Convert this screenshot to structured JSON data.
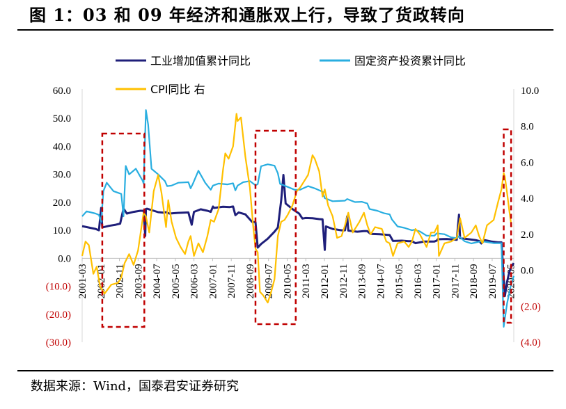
{
  "title": "图 1：03 和 09 年经济和通胀双上行，导致了货政转向",
  "source": "数据来源：Wind，国泰君安证券研究",
  "chart_data": {
    "type": "line",
    "title": "",
    "xlabel": "",
    "ylabel": "",
    "ylim_left": [
      -30,
      60
    ],
    "ylim_right": [
      -4,
      10
    ],
    "y_ticks_left": [
      "60.0",
      "50.0",
      "40.0",
      "30.0",
      "20.0",
      "10.0",
      "0.0",
      "(10.0)",
      "(20.0)",
      "(30.0)"
    ],
    "y_ticks_right": [
      "10.0",
      "8.0",
      "6.0",
      "4.0",
      "2.0",
      "0.0",
      "(2.0)",
      "(4.0)"
    ],
    "x_ticks": [
      "2001-03",
      "2002-01",
      "2002-11",
      "2003-09",
      "2004-07",
      "2005-05",
      "2006-03",
      "2007-01",
      "2007-11",
      "2008-09",
      "2009-07",
      "2010-05",
      "2011-03",
      "2012-01",
      "2012-11",
      "2013-09",
      "2014-07",
      "2015-05",
      "2016-03",
      "2017-01",
      "2017-11",
      "2018-09",
      "2019-07",
      "2020-05"
    ],
    "negative_color": "#c00000",
    "legend": [
      {
        "name": "工业增加值累计同比",
        "color": "#1f1f7a"
      },
      {
        "name": "固定资产投资累计同比",
        "color": "#29aee0"
      },
      {
        "name": "CPI同比 右",
        "color": "#ffc000"
      }
    ],
    "series": [
      {
        "name": "工业增加值累计同比",
        "axis": "left",
        "color": "#1f1f7a",
        "points": [
          [
            2001.2,
            11.5
          ],
          [
            2001.5,
            11.0
          ],
          [
            2001.8,
            10.5
          ],
          [
            2001.95,
            10.0
          ],
          [
            2002.05,
            18.0
          ],
          [
            2002.1,
            11.0
          ],
          [
            2002.4,
            11.6
          ],
          [
            2002.7,
            12.0
          ],
          [
            2002.9,
            12.4
          ],
          [
            2003.05,
            17.8
          ],
          [
            2003.2,
            16.0
          ],
          [
            2003.5,
            16.6
          ],
          [
            2003.8,
            17.0
          ],
          [
            2003.95,
            17.0
          ],
          [
            2004.02,
            8.0
          ],
          [
            2004.05,
            17.6
          ],
          [
            2004.1,
            17.7
          ],
          [
            2004.4,
            17.0
          ],
          [
            2004.6,
            16.5
          ],
          [
            2004.85,
            16.3
          ],
          [
            2004.95,
            16.5
          ],
          [
            2005.1,
            16.0
          ],
          [
            2005.4,
            16.2
          ],
          [
            2005.7,
            16.3
          ],
          [
            2005.95,
            16.4
          ],
          [
            2006.1,
            12.0
          ],
          [
            2006.2,
            16.6
          ],
          [
            2006.5,
            17.5
          ],
          [
            2006.8,
            17.0
          ],
          [
            2006.95,
            16.6
          ],
          [
            2007.05,
            18.5
          ],
          [
            2007.1,
            18.0
          ],
          [
            2007.5,
            18.4
          ],
          [
            2007.8,
            18.3
          ],
          [
            2007.95,
            18.5
          ],
          [
            2008.05,
            15.4
          ],
          [
            2008.2,
            16.4
          ],
          [
            2008.5,
            15.7
          ],
          [
            2008.8,
            13.0
          ],
          [
            2008.95,
            12.9
          ],
          [
            2009.05,
            3.8
          ],
          [
            2009.2,
            5.1
          ],
          [
            2009.5,
            7.0
          ],
          [
            2009.8,
            9.5
          ],
          [
            2009.95,
            11.0
          ],
          [
            2010.1,
            20.7
          ],
          [
            2010.2,
            29.8
          ],
          [
            2010.3,
            19.6
          ],
          [
            2010.6,
            17.6
          ],
          [
            2010.9,
            16.0
          ],
          [
            2011.05,
            14.2
          ],
          [
            2011.2,
            14.4
          ],
          [
            2011.5,
            14.3
          ],
          [
            2011.8,
            14.0
          ],
          [
            2011.95,
            13.9
          ],
          [
            2012.05,
            3.0
          ],
          [
            2012.1,
            11.4
          ],
          [
            2012.4,
            10.5
          ],
          [
            2012.8,
            10.0
          ],
          [
            2012.95,
            10.0
          ],
          [
            2013.05,
            15.0
          ],
          [
            2013.1,
            9.9
          ],
          [
            2013.5,
            9.5
          ],
          [
            2013.8,
            9.7
          ],
          [
            2013.95,
            9.7
          ],
          [
            2014.1,
            8.7
          ],
          [
            2014.5,
            8.6
          ],
          [
            2014.8,
            8.4
          ],
          [
            2014.95,
            8.3
          ],
          [
            2015.1,
            6.2
          ],
          [
            2015.5,
            6.3
          ],
          [
            2015.8,
            6.1
          ],
          [
            2015.95,
            6.1
          ],
          [
            2016.1,
            5.4
          ],
          [
            2016.5,
            6.0
          ],
          [
            2016.8,
            6.0
          ],
          [
            2016.95,
            6.0
          ],
          [
            2017.05,
            6.3
          ],
          [
            2017.1,
            6.8
          ],
          [
            2017.5,
            6.9
          ],
          [
            2017.8,
            6.7
          ],
          [
            2017.95,
            6.6
          ],
          [
            2018.05,
            15.6
          ],
          [
            2018.1,
            7.2
          ],
          [
            2018.5,
            6.8
          ],
          [
            2018.8,
            6.5
          ],
          [
            2018.95,
            6.2
          ],
          [
            2019.05,
            5.3
          ],
          [
            2019.2,
            6.5
          ],
          [
            2019.5,
            6.0
          ],
          [
            2019.8,
            5.7
          ],
          [
            2019.95,
            5.7
          ],
          [
            2020.1,
            -13.5
          ],
          [
            2020.2,
            -8.4
          ],
          [
            2020.3,
            -4.9
          ],
          [
            2020.4,
            -2.8
          ],
          [
            2020.5,
            -1.7
          ]
        ]
      },
      {
        "name": "固定资产投资累计同比",
        "axis": "left",
        "color": "#29aee0",
        "points": [
          [
            2001.2,
            15.0
          ],
          [
            2001.4,
            16.8
          ],
          [
            2001.8,
            16.0
          ],
          [
            2001.95,
            15.5
          ],
          [
            2002.05,
            13.0
          ],
          [
            2002.15,
            24.0
          ],
          [
            2002.3,
            27.0
          ],
          [
            2002.6,
            24.0
          ],
          [
            2002.95,
            23.0
          ],
          [
            2003.05,
            15.0
          ],
          [
            2003.15,
            33.0
          ],
          [
            2003.3,
            30.0
          ],
          [
            2003.6,
            32.0
          ],
          [
            2003.9,
            27.8
          ],
          [
            2003.95,
            26.7
          ],
          [
            2004.05,
            53.0
          ],
          [
            2004.15,
            47.8
          ],
          [
            2004.3,
            32.0
          ],
          [
            2004.6,
            30.0
          ],
          [
            2004.9,
            27.6
          ],
          [
            2005.0,
            25.8
          ],
          [
            2005.2,
            26.0
          ],
          [
            2005.5,
            27.0
          ],
          [
            2005.95,
            27.2
          ],
          [
            2006.05,
            25.0
          ],
          [
            2006.15,
            26.6
          ],
          [
            2006.4,
            31.3
          ],
          [
            2006.7,
            27.0
          ],
          [
            2006.95,
            24.5
          ],
          [
            2007.05,
            26.0
          ],
          [
            2007.3,
            26.7
          ],
          [
            2007.7,
            26.4
          ],
          [
            2007.95,
            26.8
          ],
          [
            2008.05,
            24.3
          ],
          [
            2008.15,
            26.0
          ],
          [
            2008.4,
            27.2
          ],
          [
            2008.7,
            27.6
          ],
          [
            2008.95,
            26.1
          ],
          [
            2009.05,
            26.5
          ],
          [
            2009.2,
            32.9
          ],
          [
            2009.5,
            33.6
          ],
          [
            2009.8,
            33.1
          ],
          [
            2009.95,
            30.4
          ],
          [
            2010.05,
            26.6
          ],
          [
            2010.4,
            25.5
          ],
          [
            2010.7,
            24.5
          ],
          [
            2010.95,
            24.5
          ],
          [
            2011.05,
            24.9
          ],
          [
            2011.3,
            25.8
          ],
          [
            2011.6,
            25.0
          ],
          [
            2011.95,
            23.8
          ],
          [
            2012.05,
            21.5
          ],
          [
            2012.4,
            20.4
          ],
          [
            2012.7,
            20.5
          ],
          [
            2012.95,
            20.6
          ],
          [
            2013.05,
            21.2
          ],
          [
            2013.4,
            20.1
          ],
          [
            2013.7,
            20.2
          ],
          [
            2013.95,
            19.6
          ],
          [
            2014.05,
            17.6
          ],
          [
            2014.4,
            17.0
          ],
          [
            2014.7,
            16.1
          ],
          [
            2014.95,
            15.7
          ],
          [
            2015.05,
            13.9
          ],
          [
            2015.3,
            11.4
          ],
          [
            2015.6,
            10.9
          ],
          [
            2015.95,
            10.0
          ],
          [
            2016.05,
            10.2
          ],
          [
            2016.3,
            9.6
          ],
          [
            2016.6,
            8.1
          ],
          [
            2016.95,
            8.1
          ],
          [
            2017.05,
            8.9
          ],
          [
            2017.4,
            8.6
          ],
          [
            2017.7,
            7.5
          ],
          [
            2017.95,
            7.2
          ],
          [
            2018.05,
            7.9
          ],
          [
            2018.3,
            6.1
          ],
          [
            2018.6,
            5.3
          ],
          [
            2018.95,
            5.9
          ],
          [
            2019.05,
            6.1
          ],
          [
            2019.3,
            5.8
          ],
          [
            2019.6,
            5.4
          ],
          [
            2019.95,
            5.4
          ],
          [
            2020.05,
            -24.5
          ],
          [
            2020.2,
            -16.1
          ],
          [
            2020.35,
            -10.3
          ],
          [
            2020.5,
            -6.3
          ]
        ]
      },
      {
        "name": "CPI同比",
        "axis": "right",
        "color": "#ffc000",
        "points": [
          [
            2001.2,
            0.8
          ],
          [
            2001.35,
            1.6
          ],
          [
            2001.5,
            1.4
          ],
          [
            2001.7,
            -0.2
          ],
          [
            2001.85,
            0.2
          ],
          [
            2002.0,
            -0.9
          ],
          [
            2002.2,
            -1.3
          ],
          [
            2002.5,
            -0.8
          ],
          [
            2002.8,
            -0.7
          ],
          [
            2002.95,
            -0.4
          ],
          [
            2003.1,
            0.4
          ],
          [
            2003.3,
            0.9
          ],
          [
            2003.5,
            0.3
          ],
          [
            2003.7,
            1.1
          ],
          [
            2003.9,
            2.8
          ],
          [
            2003.95,
            3.2
          ],
          [
            2004.05,
            3.0
          ],
          [
            2004.2,
            2.1
          ],
          [
            2004.4,
            4.4
          ],
          [
            2004.6,
            5.3
          ],
          [
            2004.75,
            4.3
          ],
          [
            2004.95,
            2.4
          ],
          [
            2005.05,
            3.9
          ],
          [
            2005.2,
            2.7
          ],
          [
            2005.4,
            1.8
          ],
          [
            2005.6,
            1.3
          ],
          [
            2005.8,
            0.9
          ],
          [
            2005.95,
            1.6
          ],
          [
            2006.05,
            1.9
          ],
          [
            2006.2,
            0.8
          ],
          [
            2006.4,
            1.5
          ],
          [
            2006.6,
            1.0
          ],
          [
            2006.8,
            1.9
          ],
          [
            2006.95,
            2.8
          ],
          [
            2007.1,
            2.7
          ],
          [
            2007.3,
            3.4
          ],
          [
            2007.5,
            5.6
          ],
          [
            2007.6,
            6.5
          ],
          [
            2007.75,
            6.2
          ],
          [
            2007.95,
            6.9
          ],
          [
            2008.1,
            8.7
          ],
          [
            2008.15,
            8.3
          ],
          [
            2008.3,
            8.5
          ],
          [
            2008.5,
            6.3
          ],
          [
            2008.7,
            4.6
          ],
          [
            2008.85,
            2.4
          ],
          [
            2008.95,
            1.2
          ],
          [
            2009.05,
            1.0
          ],
          [
            2009.15,
            -1.2
          ],
          [
            2009.3,
            -1.4
          ],
          [
            2009.5,
            -1.8
          ],
          [
            2009.65,
            -1.2
          ],
          [
            2009.8,
            -0.5
          ],
          [
            2009.95,
            1.9
          ],
          [
            2010.1,
            2.7
          ],
          [
            2010.25,
            2.8
          ],
          [
            2010.4,
            3.1
          ],
          [
            2010.6,
            3.6
          ],
          [
            2010.8,
            4.4
          ],
          [
            2010.95,
            4.6
          ],
          [
            2011.1,
            4.9
          ],
          [
            2011.3,
            5.3
          ],
          [
            2011.5,
            6.4
          ],
          [
            2011.6,
            6.2
          ],
          [
            2011.8,
            5.5
          ],
          [
            2011.95,
            4.1
          ],
          [
            2012.05,
            4.5
          ],
          [
            2012.2,
            3.6
          ],
          [
            2012.4,
            3.0
          ],
          [
            2012.6,
            1.8
          ],
          [
            2012.8,
            1.9
          ],
          [
            2012.95,
            2.5
          ],
          [
            2013.1,
            3.2
          ],
          [
            2013.3,
            2.1
          ],
          [
            2013.6,
            2.7
          ],
          [
            2013.8,
            3.2
          ],
          [
            2013.95,
            2.5
          ],
          [
            2014.1,
            2.0
          ],
          [
            2014.3,
            2.4
          ],
          [
            2014.6,
            2.3
          ],
          [
            2014.8,
            1.6
          ],
          [
            2014.95,
            1.5
          ],
          [
            2015.1,
            0.8
          ],
          [
            2015.3,
            1.5
          ],
          [
            2015.6,
            1.6
          ],
          [
            2015.8,
            1.3
          ],
          [
            2015.95,
            1.6
          ],
          [
            2016.1,
            2.3
          ],
          [
            2016.3,
            2.0
          ],
          [
            2016.6,
            1.3
          ],
          [
            2016.8,
            2.1
          ],
          [
            2016.95,
            2.1
          ],
          [
            2017.1,
            2.5
          ],
          [
            2017.15,
            0.8
          ],
          [
            2017.4,
            1.5
          ],
          [
            2017.7,
            1.6
          ],
          [
            2017.95,
            1.8
          ],
          [
            2018.1,
            2.9
          ],
          [
            2018.3,
            1.8
          ],
          [
            2018.6,
            2.1
          ],
          [
            2018.8,
            2.5
          ],
          [
            2018.95,
            1.9
          ],
          [
            2019.1,
            1.5
          ],
          [
            2019.3,
            2.5
          ],
          [
            2019.6,
            2.8
          ],
          [
            2019.8,
            3.8
          ],
          [
            2019.95,
            4.5
          ],
          [
            2020.05,
            5.4
          ],
          [
            2020.1,
            5.2
          ],
          [
            2020.2,
            4.3
          ],
          [
            2020.3,
            3.3
          ],
          [
            2020.4,
            2.4
          ]
        ]
      }
    ]
  }
}
